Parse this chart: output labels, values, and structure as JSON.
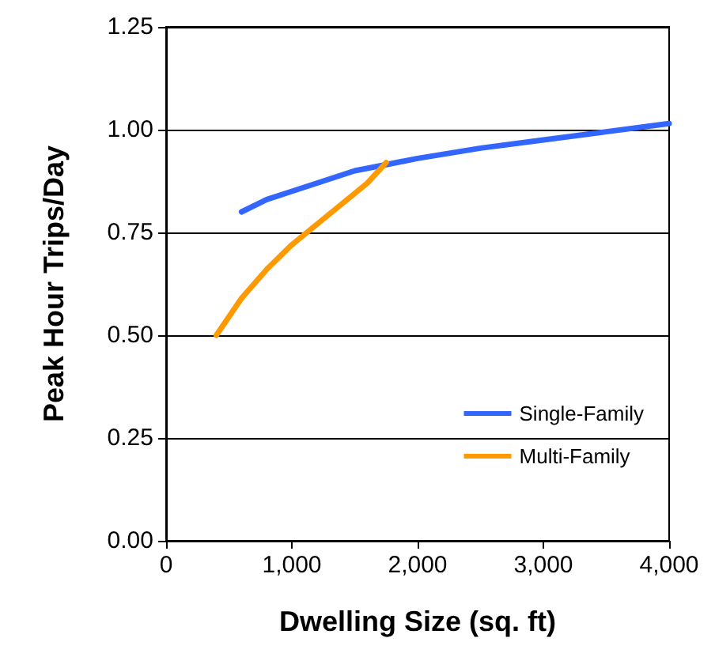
{
  "chart_data": {
    "type": "line",
    "xlabel": "Dwelling Size (sq. ft)",
    "ylabel": "Peak Hour Trips/Day",
    "xlim": [
      0,
      4000
    ],
    "xticks": [
      {
        "value": 0,
        "label": "0"
      },
      {
        "value": 1000,
        "label": "1,000"
      },
      {
        "value": 2000,
        "label": "2,000"
      },
      {
        "value": 3000,
        "label": "3,000"
      },
      {
        "value": 4000,
        "label": "4,000"
      }
    ],
    "ylim": [
      0,
      1.25
    ],
    "yticks": [
      {
        "value": 0,
        "label": "0.00"
      },
      {
        "value": 0.25,
        "label": "0.25"
      },
      {
        "value": 0.5,
        "label": "0.50"
      },
      {
        "value": 0.75,
        "label": "0.75"
      },
      {
        "value": 1,
        "label": "1.00"
      },
      {
        "value": 1.25,
        "label": "1.25"
      }
    ],
    "grid": "y",
    "legend": "bottom right",
    "marker": "none",
    "line_style": "solid",
    "series": [
      {
        "name": "Single-Family",
        "color": "#3366ff",
        "x": [
          600,
          800,
          1000,
          1250,
          1500,
          1750,
          2000,
          2500,
          3000,
          3500,
          4000
        ],
        "values": [
          0.8,
          0.83,
          0.85,
          0.875,
          0.9,
          0.915,
          0.93,
          0.955,
          0.975,
          0.995,
          1.015
        ]
      },
      {
        "name": "Multi-Family",
        "color": "#ff9900",
        "x": [
          400,
          600,
          800,
          1000,
          1200,
          1400,
          1600,
          1750
        ],
        "values": [
          0.5,
          0.59,
          0.66,
          0.72,
          0.77,
          0.82,
          0.87,
          0.92
        ]
      }
    ]
  }
}
